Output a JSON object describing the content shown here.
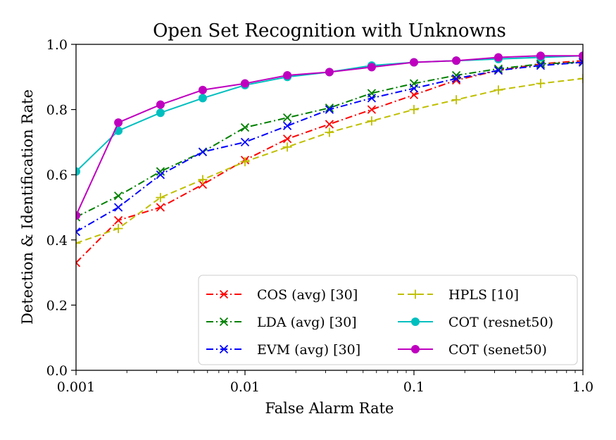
{
  "chart_data": {
    "type": "line",
    "title": "Open Set Recognition with Unknowns",
    "xlabel": "False Alarm Rate",
    "ylabel": "Detection & Identification Rate",
    "xscale": "log",
    "xlim": [
      0.001,
      1.0
    ],
    "ylim": [
      0.0,
      1.0
    ],
    "xticks": [
      {
        "value": 0.001,
        "label": "0.001"
      },
      {
        "value": 0.01,
        "label": "0.01"
      },
      {
        "value": 0.1,
        "label": "0.1"
      },
      {
        "value": 1.0,
        "label": "1.0"
      }
    ],
    "yticks": [
      {
        "value": 0.0,
        "label": "0.0"
      },
      {
        "value": 0.2,
        "label": "0.2"
      },
      {
        "value": 0.4,
        "label": "0.4"
      },
      {
        "value": 0.6,
        "label": "0.6"
      },
      {
        "value": 0.8,
        "label": "0.8"
      },
      {
        "value": 1.0,
        "label": "1.0"
      }
    ],
    "grid": false,
    "legend_position": "lower-right",
    "x": [
      0.001,
      0.00178,
      0.00316,
      0.00562,
      0.01,
      0.0178,
      0.0316,
      0.0562,
      0.1,
      0.178,
      0.316,
      0.562,
      1.0
    ],
    "series": [
      {
        "name": "COS (avg) [30]",
        "color": "#ff0000",
        "marker": "x",
        "dash": "dashdot",
        "values": [
          0.33,
          0.46,
          0.5,
          0.57,
          0.645,
          0.71,
          0.755,
          0.8,
          0.845,
          0.89,
          0.92,
          0.94,
          0.95
        ]
      },
      {
        "name": "LDA (avg) [30]",
        "color": "#008000",
        "marker": "x",
        "dash": "dashdot",
        "values": [
          0.47,
          0.535,
          0.61,
          0.67,
          0.745,
          0.775,
          0.805,
          0.85,
          0.88,
          0.905,
          0.925,
          0.94,
          0.945
        ]
      },
      {
        "name": "EVM (avg) [30]",
        "color": "#0000ff",
        "marker": "x",
        "dash": "dashdot",
        "values": [
          0.425,
          0.5,
          0.6,
          0.67,
          0.7,
          0.75,
          0.8,
          0.835,
          0.865,
          0.895,
          0.92,
          0.935,
          0.945
        ]
      },
      {
        "name": "HPLS [10]",
        "color": "#bfbf00",
        "marker": "+",
        "dash": "dashed",
        "values": [
          0.39,
          0.435,
          0.53,
          0.585,
          0.64,
          0.685,
          0.73,
          0.765,
          0.8,
          0.83,
          0.86,
          0.88,
          0.895
        ]
      },
      {
        "name": "COT (resnet50)",
        "color": "#00bfbf",
        "marker": "o",
        "dash": "solid",
        "values": [
          0.61,
          0.735,
          0.79,
          0.835,
          0.875,
          0.9,
          0.915,
          0.935,
          0.945,
          0.95,
          0.955,
          0.96,
          0.965
        ]
      },
      {
        "name": "COT (senet50)",
        "color": "#bf00bf",
        "marker": "o",
        "dash": "solid",
        "values": [
          0.475,
          0.76,
          0.815,
          0.86,
          0.88,
          0.905,
          0.915,
          0.93,
          0.945,
          0.95,
          0.96,
          0.965,
          0.965
        ]
      }
    ]
  }
}
